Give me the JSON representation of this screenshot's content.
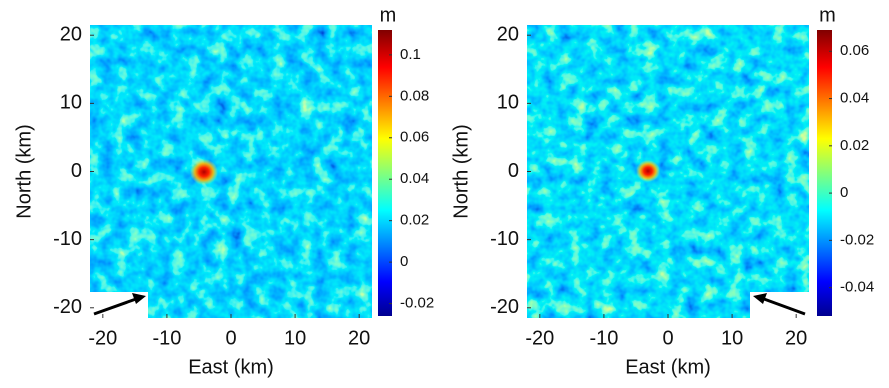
{
  "chart_data": [
    {
      "type": "heatmap",
      "xlabel": "East (km)",
      "ylabel": "North (km)",
      "xlim": [
        -22,
        22
      ],
      "ylim": [
        -21.5,
        21.5
      ],
      "xticks": [
        -20,
        -10,
        0,
        10,
        20
      ],
      "yticks": [
        -20,
        -10,
        0,
        10,
        20
      ],
      "colormap": "jet",
      "colorbar": {
        "label": "m",
        "lim": [
          -0.026,
          0.112
        ],
        "ticks": [
          -0.02,
          0,
          0.02,
          0.04,
          0.06,
          0.08,
          0.1
        ]
      }
    },
    {
      "type": "heatmap",
      "xlabel": "East (km)",
      "ylabel": "North (km)",
      "xlim": [
        -22,
        22
      ],
      "ylim": [
        -21.5,
        21.5
      ],
      "xticks": [
        -20,
        -10,
        0,
        10,
        20
      ],
      "yticks": [
        -20,
        -10,
        0,
        10,
        20
      ],
      "colormap": "jet",
      "colorbar": {
        "label": "m",
        "lim": [
          -0.052,
          0.069
        ],
        "ticks": [
          -0.04,
          -0.02,
          0,
          0.02,
          0.04,
          0.06
        ]
      }
    }
  ]
}
